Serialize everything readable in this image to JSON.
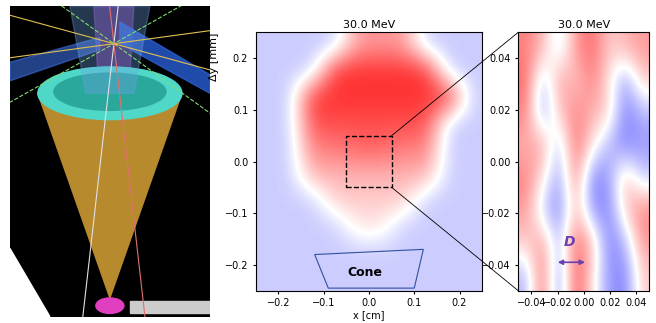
{
  "chart_data": [
    {
      "type": "image",
      "title": "30.0 MeV",
      "xlabel": "x [cm]",
      "ylabel": "Δy [mm]",
      "xlim": [
        -0.25,
        0.25
      ],
      "ylim": [
        -0.25,
        0.25
      ],
      "xticks": [
        {
          "value": -0.2,
          "label": "−0.2"
        },
        {
          "value": -0.1,
          "label": "−0.1"
        },
        {
          "value": 0,
          "label": "0.0"
        },
        0.1,
        0.2
      ],
      "yticks": [
        {
          "value": -0.2,
          "label": "−0.2"
        },
        {
          "value": -0.1,
          "label": "−0.1"
        },
        {
          "value": 0,
          "label": "0.0"
        },
        0.1,
        0.2
      ],
      "clim": [
        -1,
        1
      ],
      "cells": [
        [
          -0.2,
          -0.2,
          -0.2,
          -0.2,
          -0.2,
          -0.2,
          -0.2,
          -0.2,
          -0.2,
          -0.2
        ],
        [
          -0.2,
          -0.2,
          -0.2,
          -0.2,
          -0.2,
          -0.2,
          -0.2,
          -0.2,
          -0.2,
          -0.2
        ],
        [
          -0.2,
          -0.2,
          -0.2,
          -0.2,
          0.1,
          0.1,
          -0.2,
          -0.2,
          -0.2,
          -0.2
        ],
        [
          -0.2,
          -0.2,
          -0.2,
          0.2,
          0.2,
          0.2,
          0.2,
          -0.2,
          -0.2,
          -0.2
        ],
        [
          -0.2,
          -0.2,
          0.3,
          0.3,
          0.3,
          0.3,
          0.3,
          0.3,
          -0.2,
          -0.2
        ],
        [
          -0.2,
          -0.2,
          0.5,
          0.5,
          0.6,
          0.6,
          0.5,
          0.5,
          -0.2,
          -0.2
        ],
        [
          -0.2,
          -0.2,
          0.7,
          0.7,
          0.7,
          0.7,
          0.7,
          0.7,
          -0.2,
          -0.2
        ],
        [
          -0.2,
          -0.2,
          0.8,
          0.8,
          0.8,
          0.8,
          0.8,
          0.8,
          0.8,
          -0.2
        ],
        [
          -0.2,
          -0.2,
          -0.2,
          0.8,
          0.8,
          0.8,
          0.8,
          0.8,
          -0.2,
          -0.2
        ],
        [
          -0.2,
          -0.2,
          -0.2,
          -0.2,
          0.4,
          0.4,
          0.4,
          -0.2,
          -0.2,
          -0.2
        ]
      ],
      "annotations": [
        "Cone"
      ]
    },
    {
      "type": "image",
      "title": "30.0 MeV",
      "xlim": [
        -0.05,
        0.05
      ],
      "ylim": [
        -0.05,
        0.05
      ],
      "xticks": [
        {
          "value": -0.04,
          "label": "−0.04"
        },
        {
          "value": -0.02,
          "label": "−0.02"
        },
        {
          "value": 0,
          "label": "0.00"
        },
        0.02,
        0.04
      ],
      "yticks": [
        {
          "value": -0.04,
          "label": "−0.04"
        },
        {
          "value": -0.02,
          "label": "−0.02"
        },
        {
          "value": 0,
          "label": "0.00"
        },
        0.02,
        0.04
      ],
      "clim": [
        -1,
        1
      ],
      "cells": [
        [
          -0.3,
          0.6,
          -0.5,
          0.7,
          0.1,
          -0.4,
          -0.5,
          0.2
        ],
        [
          0.2,
          0.4,
          -0.3,
          0.6,
          0.3,
          -0.5,
          -0.3,
          0.4
        ],
        [
          0.4,
          -0.2,
          -0.5,
          0.3,
          -0.4,
          -0.5,
          0.2,
          0.5
        ],
        [
          0.5,
          0.1,
          -0.4,
          0.5,
          -0.5,
          -0.4,
          0.3,
          -0.2
        ],
        [
          0.3,
          0.4,
          -0.3,
          0.6,
          0.1,
          -0.3,
          -0.5,
          -0.4
        ],
        [
          0.5,
          -0.4,
          0.2,
          0.5,
          0.3,
          0.2,
          -0.5,
          -0.3
        ],
        [
          0.6,
          -0.3,
          0.4,
          0.2,
          0.5,
          0.1,
          -0.4,
          0.2
        ],
        [
          0.5,
          0.3,
          -0.2,
          0.4,
          0.6,
          0.2,
          0.3,
          0.4
        ]
      ],
      "annotations": [
        "D"
      ]
    }
  ]
}
